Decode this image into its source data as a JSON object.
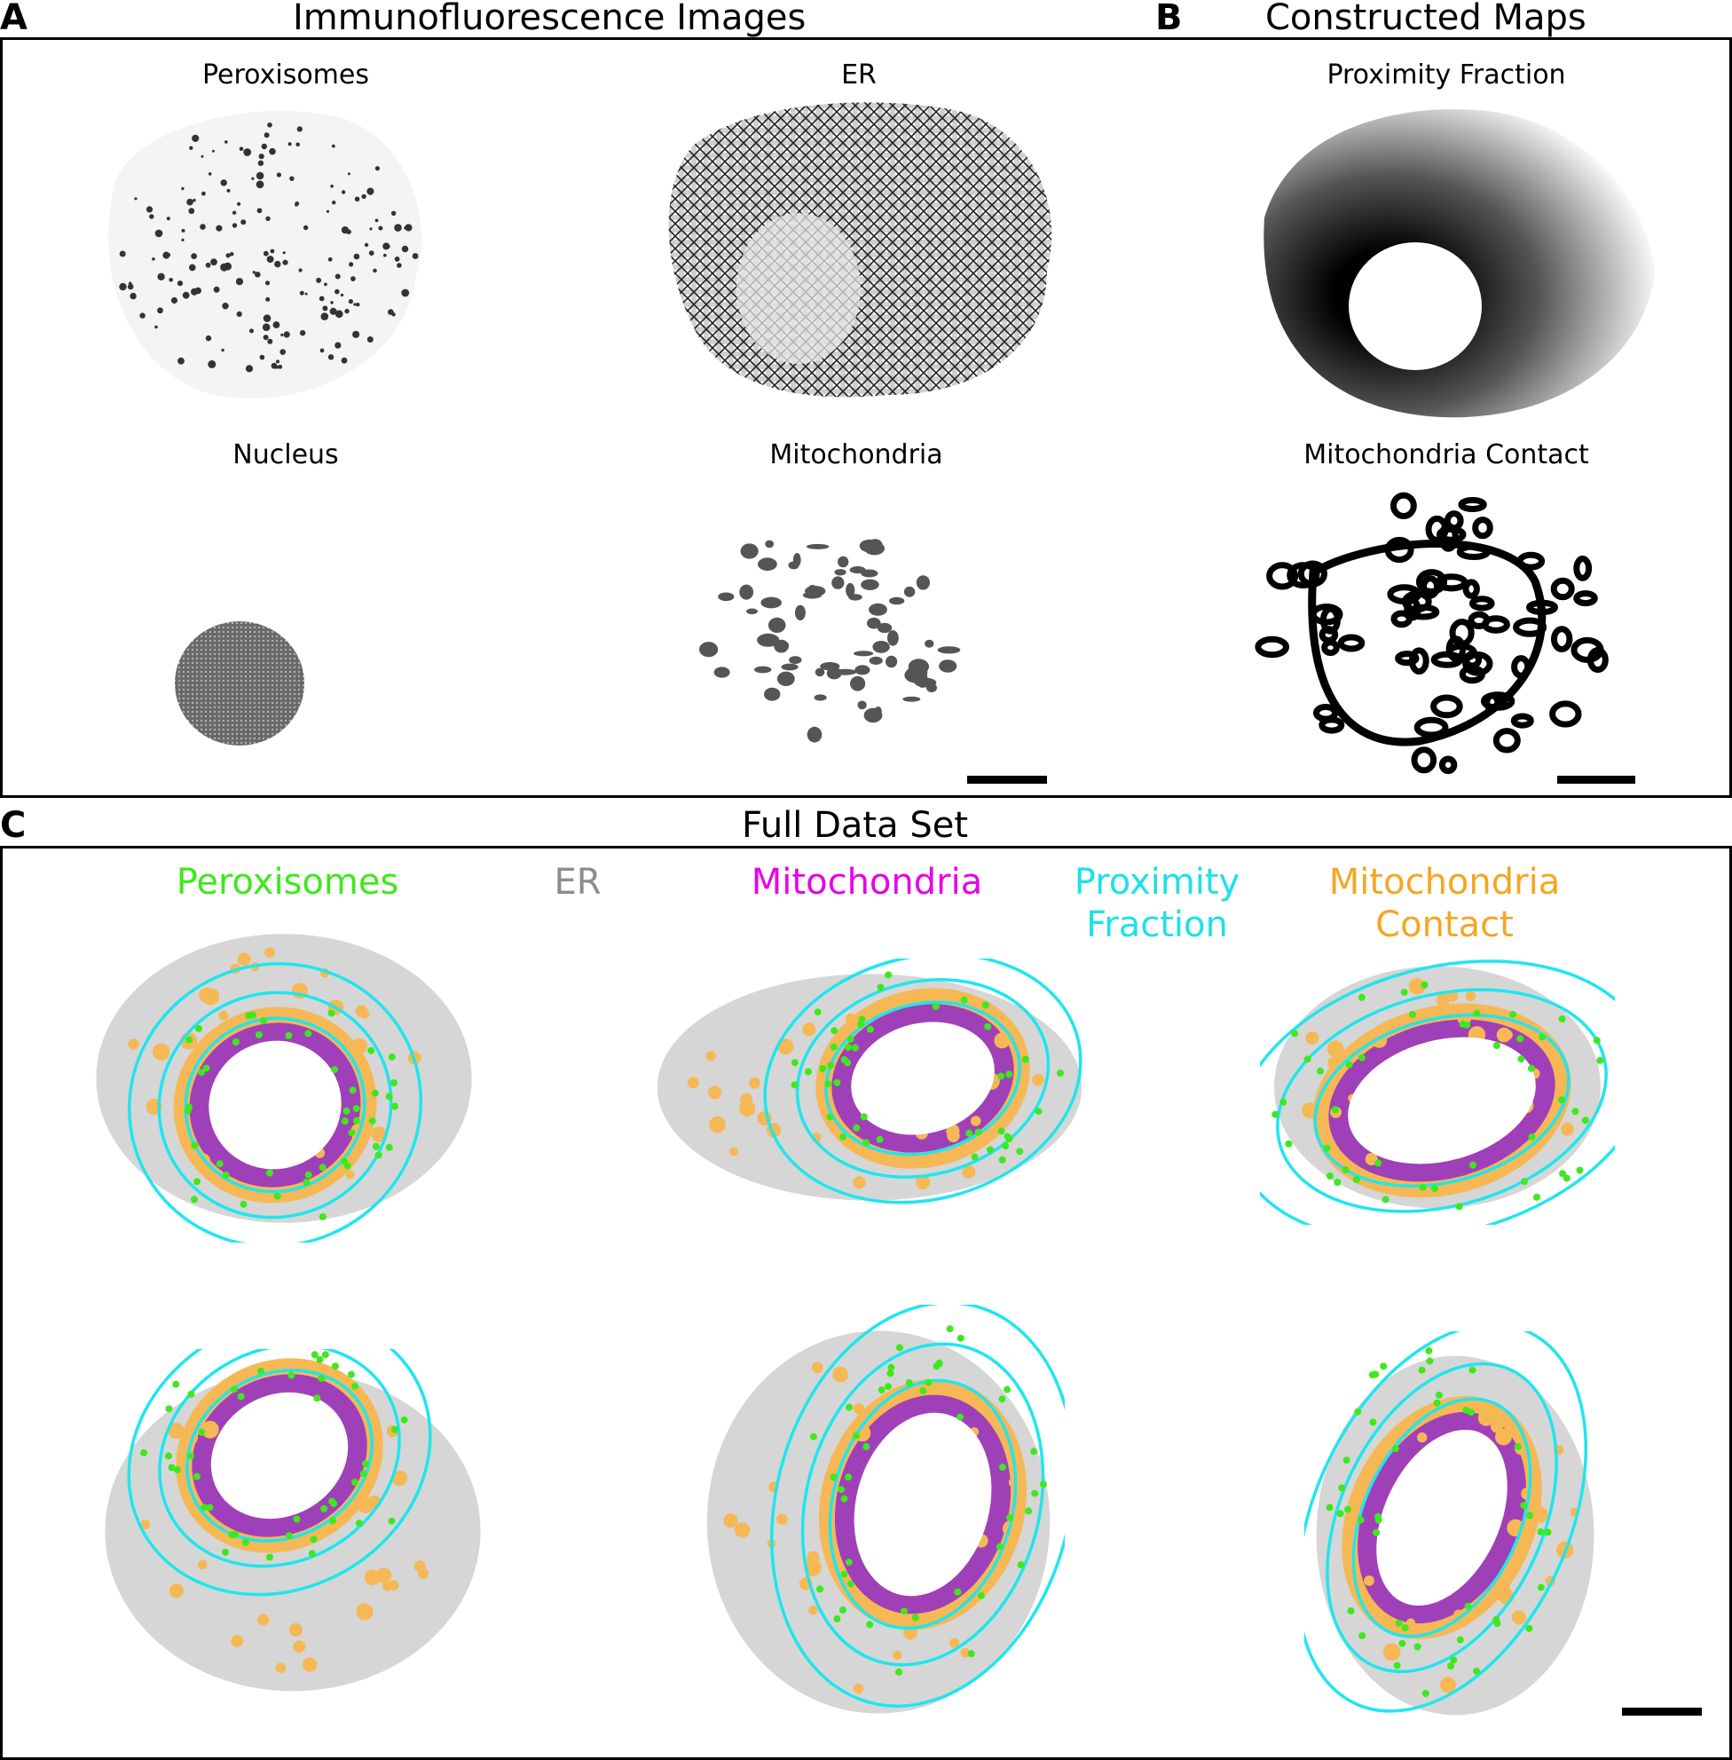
{
  "panel_a": {
    "letter": "A",
    "title": "Immunofluorescence Images",
    "images": [
      {
        "label": "Peroxisomes",
        "icon": "peroxisome-puncta-image"
      },
      {
        "label": "ER",
        "icon": "er-network-image"
      },
      {
        "label": "Nucleus",
        "icon": "nucleus-image"
      },
      {
        "label": "Mitochondria",
        "icon": "mitochondria-image"
      }
    ]
  },
  "panel_b": {
    "letter": "B",
    "title": "Constructed Maps",
    "images": [
      {
        "label": "Proximity Fraction",
        "icon": "proximity-fraction-map"
      },
      {
        "label": "Mitochondria Contact",
        "icon": "mitochondria-contact-map"
      }
    ]
  },
  "panel_c": {
    "letter": "C",
    "title": "Full Data Set",
    "legend": [
      {
        "label": "Peroxisomes",
        "color": "#3ee81e"
      },
      {
        "label": "ER",
        "color": "#8c8c8c"
      },
      {
        "label": "Mitochondria",
        "color": "#e800e8"
      },
      {
        "label": "Proximity\nFraction",
        "color": "#1ee0e8"
      },
      {
        "label": "Mitochondria\nContact",
        "color": "#f5a623"
      }
    ],
    "cells": [
      {
        "icon": "cell-overlay-1"
      },
      {
        "icon": "cell-overlay-2"
      },
      {
        "icon": "cell-overlay-3"
      },
      {
        "icon": "cell-overlay-4"
      },
      {
        "icon": "cell-overlay-5"
      },
      {
        "icon": "cell-overlay-6"
      }
    ]
  },
  "colors": {
    "peroxisome": "#3ee81e",
    "er_gray": "#d6d6d6",
    "mito_purple": "#a040b8",
    "contact_orange": "#f5b855",
    "proximity_cyan": "#1ee6ee"
  }
}
